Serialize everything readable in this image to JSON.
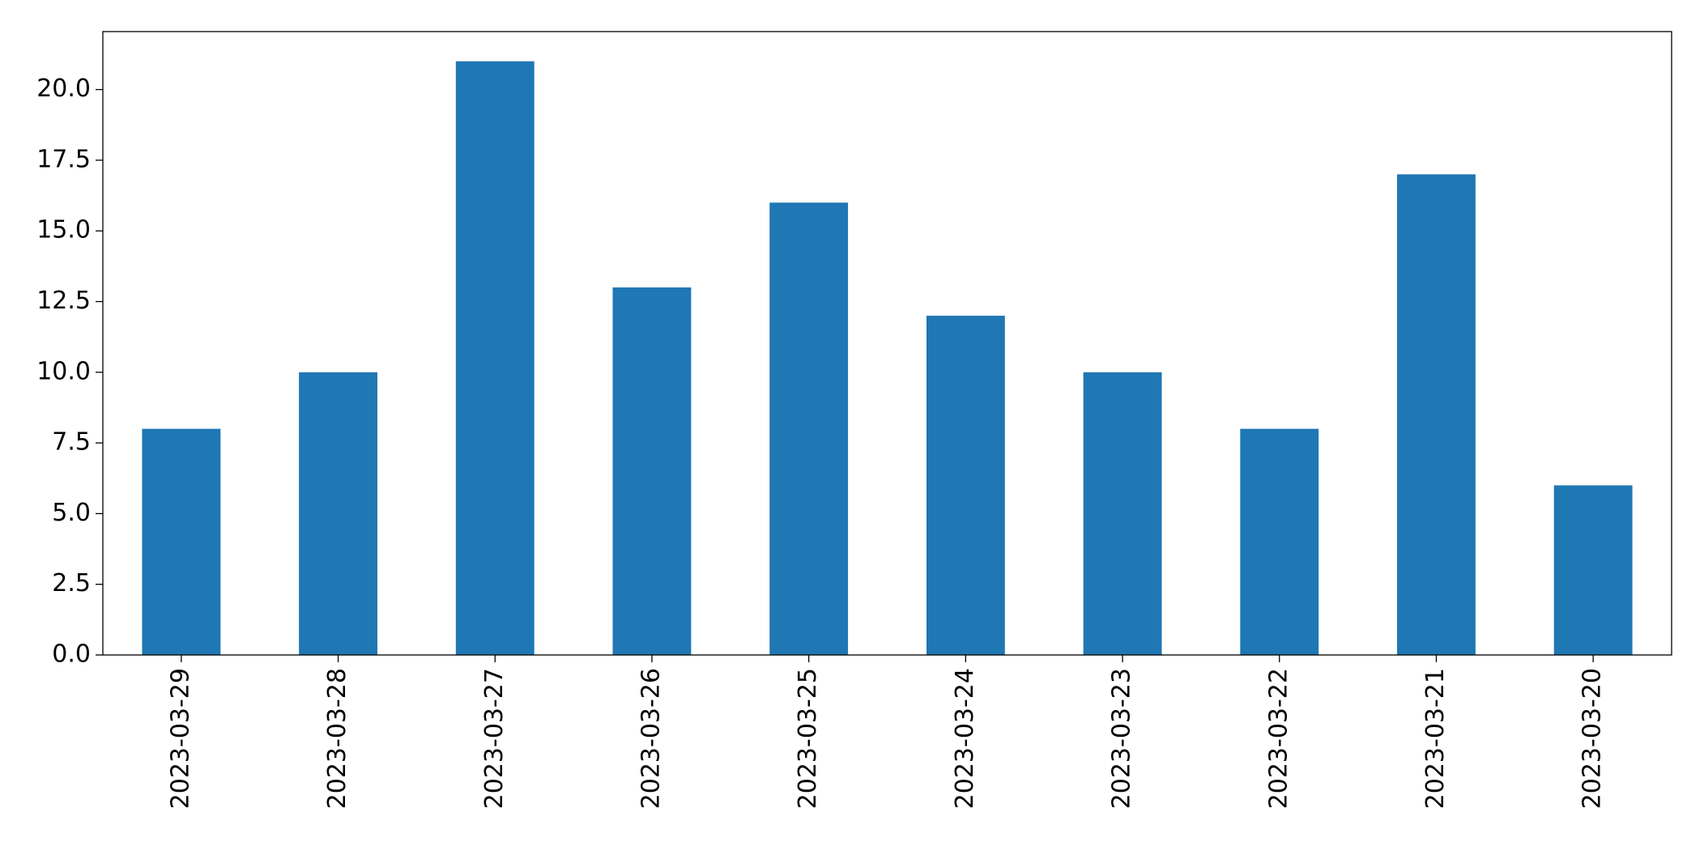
{
  "chart_data": {
    "type": "bar",
    "categories": [
      "2023-03-29",
      "2023-03-28",
      "2023-03-27",
      "2023-03-26",
      "2023-03-25",
      "2023-03-24",
      "2023-03-23",
      "2023-03-22",
      "2023-03-21",
      "2023-03-20"
    ],
    "values": [
      8,
      10,
      21,
      13,
      16,
      12,
      10,
      8,
      17,
      6
    ],
    "color": "#1f77b4",
    "ylim": [
      0,
      22.05
    ],
    "yticks": [
      {
        "value": 0,
        "label": "0.0"
      },
      2.5,
      {
        "value": 5,
        "label": "5.0"
      },
      7.5,
      {
        "value": 10,
        "label": "10.0"
      },
      12.5,
      {
        "value": 15,
        "label": "15.0"
      },
      17.5,
      {
        "value": 20,
        "label": "20.0"
      }
    ],
    "grid": false
  }
}
